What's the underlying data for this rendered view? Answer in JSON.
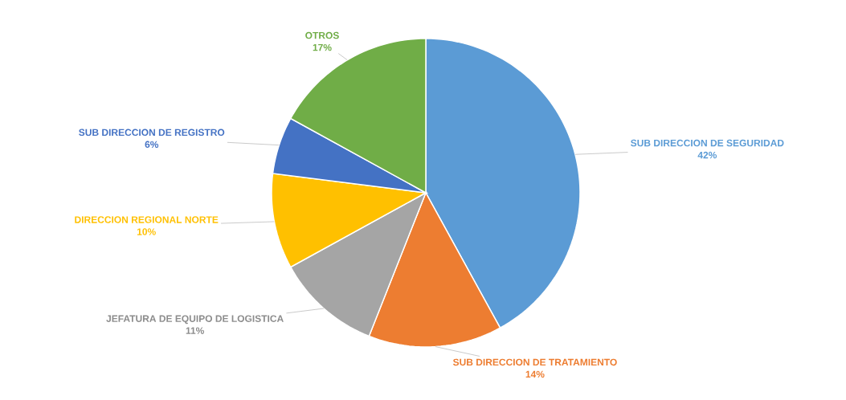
{
  "chart_data": {
    "type": "pie",
    "categories": [
      "SUB DIRECCION DE SEGURIDAD",
      "SUB DIRECCION DE TRATAMIENTO",
      "JEFATURA DE EQUIPO DE LOGISTICA",
      "DIRECCION REGIONAL NORTE",
      "SUB DIRECCION DE REGISTRO",
      "OTROS"
    ],
    "values": [
      42,
      14,
      11,
      10,
      6,
      17
    ],
    "value_labels": [
      "42%",
      "14%",
      "11%",
      "10%",
      "6%",
      "17%"
    ],
    "colors": [
      "#5b9bd5",
      "#ed7d31",
      "#a5a5a5",
      "#ffc000",
      "#4472c4",
      "#70ad47"
    ]
  }
}
